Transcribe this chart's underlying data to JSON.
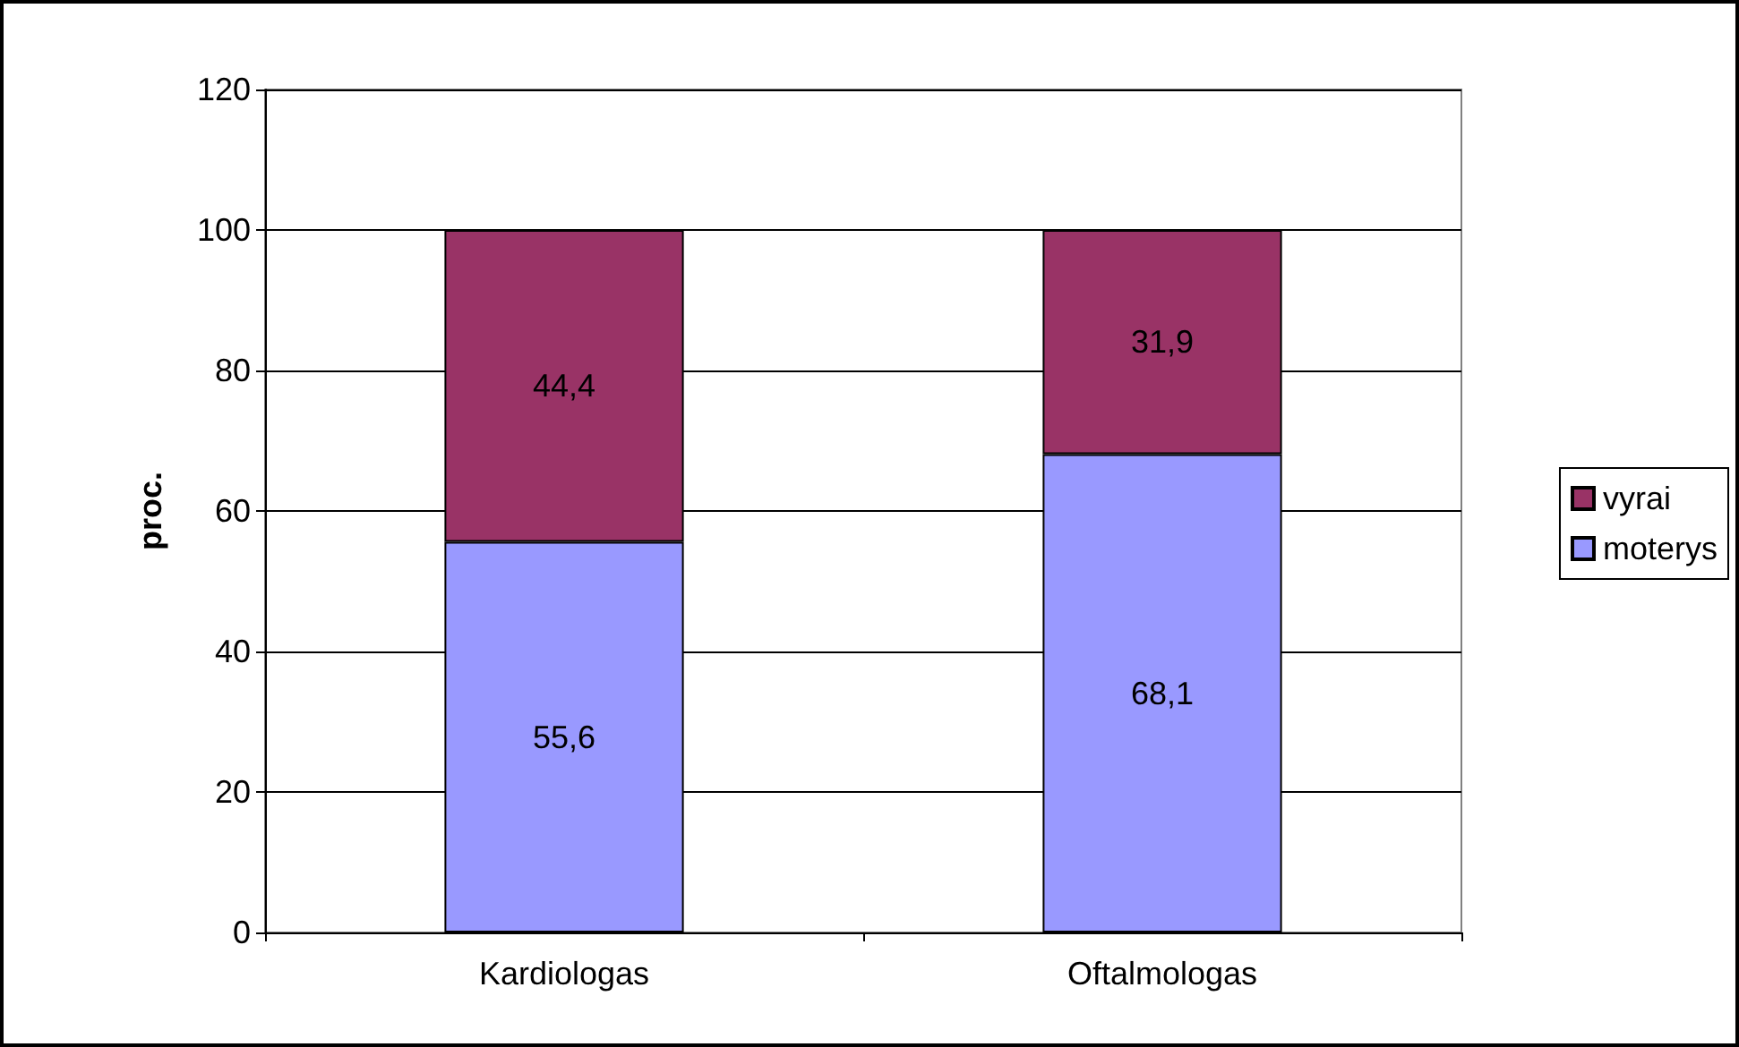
{
  "chart_data": {
    "type": "bar",
    "stacked": true,
    "ylabel": "proc.",
    "categories": [
      "Kardiologas",
      "Oftalmologas"
    ],
    "series": [
      {
        "name": "moterys",
        "color": "#9999ff",
        "values": [
          55.6,
          68.1
        ],
        "value_labels": [
          "55,6",
          "68,1"
        ]
      },
      {
        "name": "vyrai",
        "color": "#993366",
        "values": [
          44.4,
          31.9
        ],
        "value_labels": [
          "44,4",
          "31,9"
        ]
      }
    ],
    "ylim": [
      0,
      120
    ],
    "yticks": [
      0,
      20,
      40,
      60,
      80,
      100,
      120
    ],
    "grid": "y",
    "legend": "right"
  }
}
